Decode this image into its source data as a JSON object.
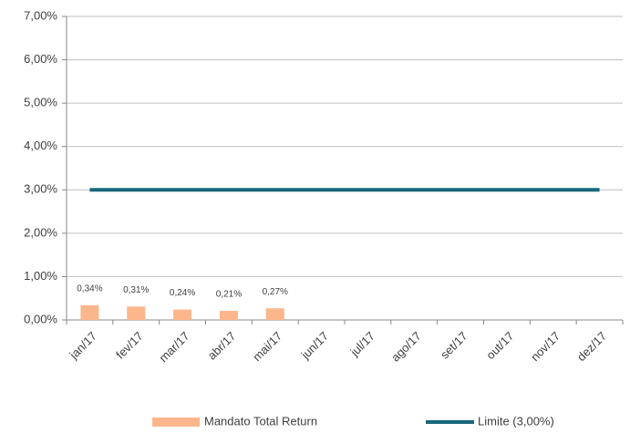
{
  "chart_data": {
    "type": "bar",
    "categories": [
      "jan/17",
      "fev/17",
      "mar/17",
      "abr/17",
      "mai/17",
      "jun/17",
      "jul/17",
      "ago/17",
      "set/17",
      "out/17",
      "nov/17",
      "dez/17"
    ],
    "series": [
      {
        "name": "Mandato Total Return",
        "type": "bar",
        "color": "#fcb68c",
        "values": [
          0.34,
          0.31,
          0.24,
          0.21,
          0.27,
          null,
          null,
          null,
          null,
          null,
          null,
          null
        ],
        "value_labels": [
          "0,34%",
          "0,31%",
          "0,24%",
          "0,21%",
          "0,27%",
          null,
          null,
          null,
          null,
          null,
          null,
          null
        ]
      },
      {
        "name": "Limite (3,00%)",
        "type": "line",
        "color": "#17687a",
        "values": [
          3,
          3,
          3,
          3,
          3,
          3,
          3,
          3,
          3,
          3,
          3,
          3
        ]
      }
    ],
    "ylim": [
      0,
      7
    ],
    "yticks": [
      {
        "value": 0,
        "label": "0,00%"
      },
      {
        "value": 1,
        "label": "1,00%"
      },
      {
        "value": 2,
        "label": "2,00%"
      },
      {
        "value": 3,
        "label": "3,00%"
      },
      {
        "value": 4,
        "label": "4,00%"
      },
      {
        "value": 5,
        "label": "5,00%"
      },
      {
        "value": 6,
        "label": "6,00%"
      },
      {
        "value": 7,
        "label": "7,00%"
      }
    ],
    "grid": true,
    "legend": "bottom"
  }
}
